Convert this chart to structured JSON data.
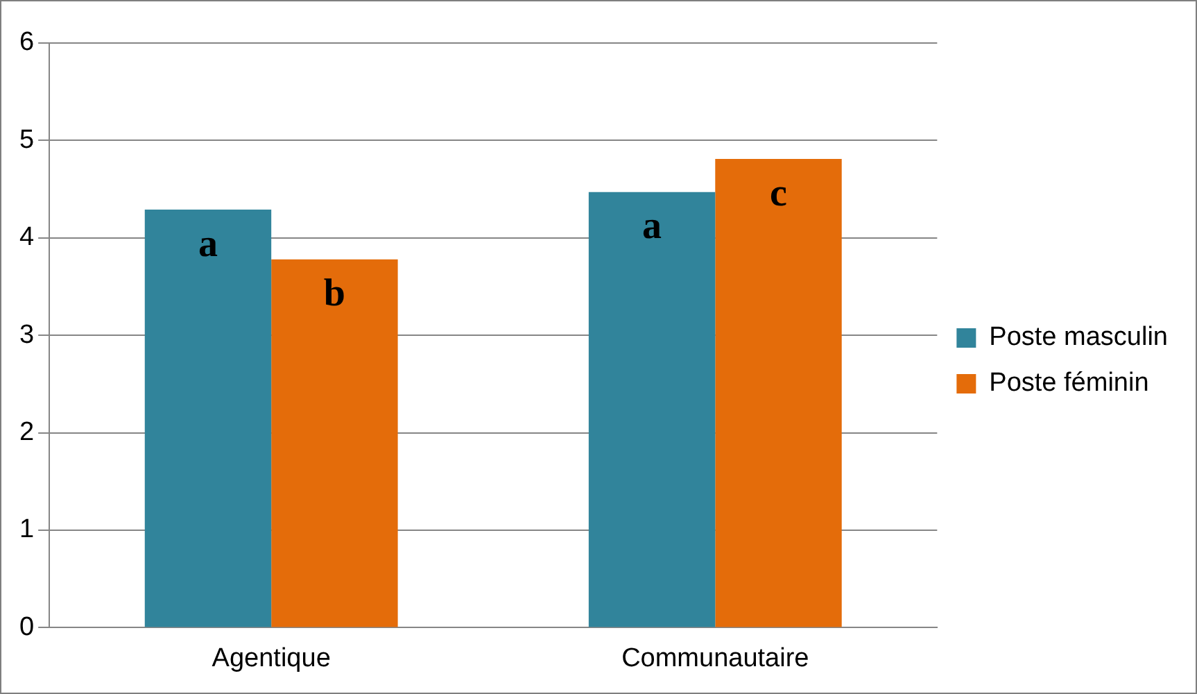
{
  "chart_data": {
    "type": "bar",
    "categories": [
      "Agentique",
      "Communautaire"
    ],
    "series": [
      {
        "name": "Poste masculin",
        "color": "#31849b",
        "values": [
          4.29,
          4.47
        ],
        "value_labels": [
          "a",
          "a"
        ]
      },
      {
        "name": "Poste féminin",
        "color": "#e46c0a",
        "values": [
          3.78,
          4.81
        ],
        "value_labels": [
          "b",
          "c"
        ]
      }
    ],
    "ylim": [
      0,
      6
    ],
    "yticks": [
      0,
      1,
      2,
      3,
      4,
      5,
      6
    ],
    "grid": "y",
    "legend": "right"
  }
}
